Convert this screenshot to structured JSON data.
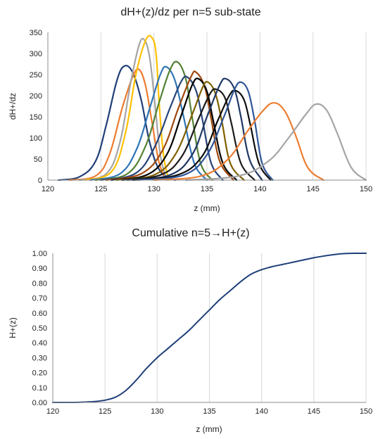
{
  "chart_data": [
    {
      "type": "line",
      "title": "dH+(z)/dz per n=5 sub-state",
      "xlabel": "z (mm)",
      "ylabel": "dH+/dz",
      "xlim": [
        120,
        150
      ],
      "ylim": [
        0,
        350
      ],
      "xticks": [
        120,
        125,
        130,
        135,
        140,
        145,
        150
      ],
      "yticks": [
        0,
        50,
        100,
        150,
        200,
        250,
        300,
        350
      ],
      "grid": "vertical",
      "legend": "none",
      "series": [
        {
          "color": "#1f3f7a",
          "x": [
            121.0,
            123.0,
            124.5,
            125.5,
            126.5,
            127.2,
            128.0,
            128.8,
            129.5,
            130.2,
            131.0,
            132.0
          ],
          "y": [
            0,
            8,
            45,
            130,
            235,
            270,
            255,
            190,
            100,
            40,
            10,
            0
          ]
        },
        {
          "color": "#ed7d31",
          "x": [
            122.0,
            124.5,
            125.8,
            127.0,
            128.0,
            128.6,
            129.2,
            129.8,
            130.5,
            131.2
          ],
          "y": [
            0,
            10,
            60,
            170,
            245,
            262,
            225,
            140,
            40,
            0
          ]
        },
        {
          "color": "#a5a5a5",
          "x": [
            123.0,
            125.5,
            126.8,
            127.8,
            128.6,
            129.1,
            129.6,
            130.1,
            130.6,
            131.2
          ],
          "y": [
            0,
            15,
            90,
            230,
            320,
            332,
            290,
            180,
            60,
            0
          ]
        },
        {
          "color": "#ffc000",
          "x": [
            123.5,
            126.0,
            127.3,
            128.3,
            129.2,
            129.8,
            130.2,
            130.5,
            130.9,
            131.4
          ],
          "y": [
            0,
            20,
            110,
            250,
            330,
            338,
            300,
            180,
            60,
            0
          ]
        },
        {
          "color": "#2e75b6",
          "x": [
            124.0,
            126.8,
            128.4,
            129.6,
            130.6,
            131.2,
            132.0,
            132.8,
            133.8,
            135.0
          ],
          "y": [
            0,
            15,
            75,
            170,
            250,
            268,
            235,
            150,
            40,
            0
          ]
        },
        {
          "color": "#548235",
          "x": [
            124.5,
            127.5,
            129.2,
            130.5,
            131.5,
            132.2,
            133.0,
            133.6,
            134.4,
            135.5
          ],
          "y": [
            0,
            15,
            80,
            185,
            260,
            280,
            240,
            150,
            40,
            0
          ]
        },
        {
          "color": "#264478",
          "x": [
            125.0,
            128.2,
            130.0,
            131.5,
            132.6,
            133.2,
            134.0,
            134.6,
            135.4,
            136.5
          ],
          "y": [
            0,
            15,
            75,
            170,
            235,
            243,
            210,
            140,
            40,
            0
          ]
        },
        {
          "color": "#9e480e",
          "x": [
            125.5,
            128.8,
            130.8,
            132.3,
            133.5,
            134.0,
            134.8,
            135.4,
            136.2,
            137.5
          ],
          "y": [
            0,
            15,
            70,
            170,
            245,
            255,
            220,
            145,
            45,
            0
          ]
        },
        {
          "color": "#000000",
          "x": [
            126.0,
            129.3,
            131.2,
            132.6,
            133.6,
            134.2,
            135.0,
            135.6,
            136.5,
            137.8
          ],
          "y": [
            0,
            12,
            60,
            155,
            225,
            240,
            210,
            140,
            40,
            0
          ]
        },
        {
          "color": "#7f6000",
          "x": [
            126.5,
            130.0,
            132.0,
            133.6,
            134.6,
            135.1,
            135.8,
            136.4,
            137.2,
            138.5
          ],
          "y": [
            0,
            12,
            60,
            155,
            220,
            232,
            205,
            140,
            40,
            0
          ]
        },
        {
          "color": "#1a1a1a",
          "x": [
            127.0,
            130.6,
            132.6,
            134.2,
            135.3,
            135.9,
            136.7,
            137.3,
            138.2,
            139.5
          ],
          "y": [
            0,
            12,
            55,
            145,
            205,
            215,
            195,
            135,
            40,
            0
          ]
        },
        {
          "color": "#203864",
          "x": [
            127.5,
            131.5,
            133.6,
            135.0,
            136.2,
            136.8,
            137.6,
            138.2,
            139.0,
            140.2
          ],
          "y": [
            0,
            12,
            60,
            150,
            225,
            240,
            215,
            150,
            50,
            0
          ]
        },
        {
          "color": "#0d0d0d",
          "x": [
            128.0,
            132.2,
            134.5,
            136.0,
            137.1,
            137.7,
            138.5,
            139.1,
            139.9,
            141.0
          ],
          "y": [
            0,
            12,
            55,
            140,
            200,
            212,
            190,
            130,
            40,
            0
          ]
        },
        {
          "color": "#2f5597",
          "x": [
            128.5,
            132.8,
            135.0,
            136.6,
            137.6,
            138.2,
            138.9,
            139.5,
            140.2,
            141.2
          ],
          "y": [
            0,
            12,
            60,
            150,
            215,
            232,
            210,
            140,
            40,
            0
          ]
        },
        {
          "color": "#ed7d31",
          "x": [
            130.0,
            134.5,
            137.0,
            138.8,
            140.3,
            141.3,
            142.3,
            143.3,
            144.5,
            146.0
          ],
          "y": [
            0,
            10,
            50,
            115,
            165,
            183,
            165,
            110,
            30,
            0
          ]
        },
        {
          "color": "#a5a5a5",
          "x": [
            133.0,
            138.0,
            140.8,
            142.7,
            144.3,
            145.3,
            146.3,
            147.3,
            148.6,
            150.0
          ],
          "y": [
            0,
            10,
            45,
            100,
            155,
            180,
            165,
            110,
            30,
            0
          ]
        }
      ]
    },
    {
      "type": "line",
      "title": "Cumulative n=5→H+(z)",
      "xlabel": "z (mm)",
      "ylabel": "H+(z)",
      "xlim": [
        120,
        150
      ],
      "ylim": [
        0,
        1
      ],
      "xticks": [
        "120",
        "125",
        "130",
        "135",
        "140",
        "145",
        "150"
      ],
      "yticks": [
        "0.00",
        "0.10",
        "0.20",
        "0.30",
        "0.40",
        "0.50",
        "0.60",
        "0.70",
        "0.80",
        "0.90",
        "1.00"
      ],
      "grid": "vertical",
      "legend": "none",
      "series": [
        {
          "color": "#1f3f7a",
          "x": [
            120,
            122,
            123,
            124,
            125,
            126,
            127,
            128,
            129,
            130,
            131,
            132,
            133,
            134,
            135,
            136,
            137,
            138,
            139,
            140,
            141,
            142,
            143,
            144,
            145,
            146,
            147,
            148,
            149,
            150
          ],
          "y": [
            0.0,
            0.0,
            0.002,
            0.006,
            0.015,
            0.035,
            0.08,
            0.15,
            0.23,
            0.3,
            0.36,
            0.42,
            0.48,
            0.55,
            0.62,
            0.69,
            0.75,
            0.81,
            0.86,
            0.89,
            0.91,
            0.925,
            0.94,
            0.955,
            0.97,
            0.982,
            0.992,
            0.998,
            1.0,
            1.0
          ]
        }
      ]
    }
  ]
}
